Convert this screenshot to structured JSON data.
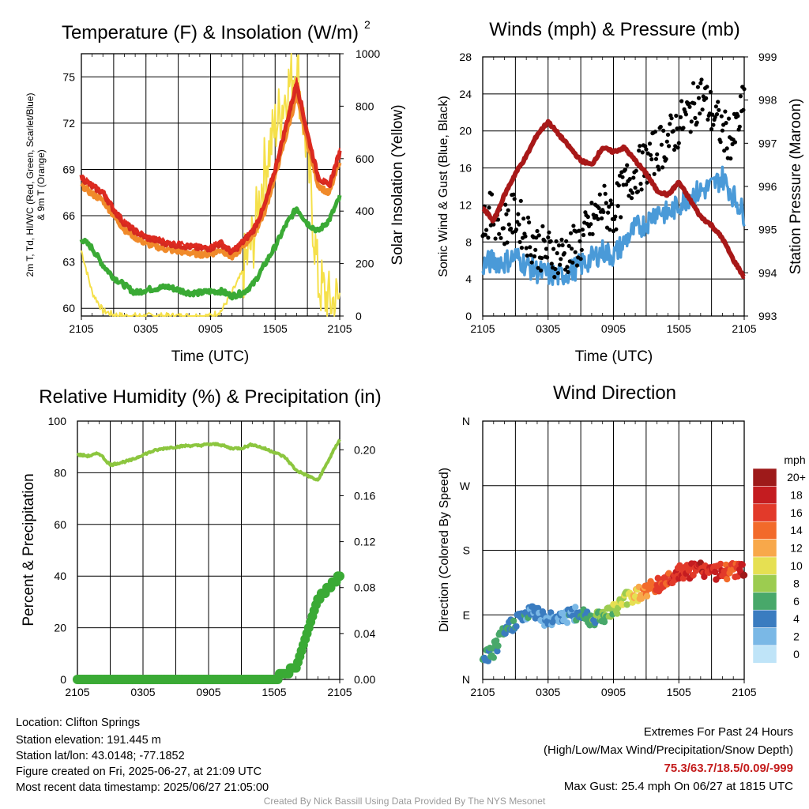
{
  "colors": {
    "temp": "#d42a20",
    "dewpoint": "#3aaa35",
    "heat_index": "#e02a20",
    "temp_9m": "#f08a2a",
    "solar": "#f5e04a",
    "wind": "#4a9ad8",
    "gust": "#000000",
    "pressure": "#a81818",
    "rh": "#8cc63f",
    "precip": "#3aaa35",
    "extremes_text": "#c41c1c"
  },
  "speed_scale": {
    "unit": "mph",
    "labels": [
      "20+",
      "18",
      "16",
      "14",
      "12",
      "10",
      "8",
      "6",
      "4",
      "2",
      "0"
    ],
    "colors": [
      "#9e1a1a",
      "#c41c20",
      "#e23a2a",
      "#f26a2a",
      "#f8a84a",
      "#e6e052",
      "#9ccc50",
      "#48a86a",
      "#3a7cc0",
      "#7ab8e6",
      "#bfe4f8"
    ]
  },
  "chart_data": [
    {
      "type": "line",
      "title": "Temperature (F) & Insolation (W/m2)",
      "xlabel": "Time (UTC)",
      "ylabel": "2m T, Td, HI/WC (Red, Green, Scarlet/Blue) & 9m T (Orange)",
      "y2label": "Solar Insolation (Yellow)",
      "x_ticks": [
        "2105",
        "0305",
        "0905",
        "1505",
        "2105"
      ],
      "y_ticks": [
        "60",
        "63",
        "66",
        "69",
        "72",
        "75"
      ],
      "y2_ticks": [
        "0",
        "200",
        "400",
        "600",
        "800",
        "1000"
      ],
      "ylim": [
        59.5,
        76.5
      ],
      "y2lim": [
        0,
        1000
      ],
      "x_hours": [
        0,
        1,
        2,
        3,
        4,
        5,
        6,
        7,
        8,
        9,
        10,
        11,
        12,
        13,
        14,
        15,
        16,
        17,
        18,
        19,
        20,
        21,
        22,
        23,
        24
      ],
      "series": [
        {
          "name": "Heat Index",
          "values": [
            68.6,
            68.0,
            67.6,
            66.5,
            65.6,
            65.1,
            64.7,
            64.5,
            64.3,
            64.2,
            64.1,
            64.0,
            64.0,
            64.3,
            63.7,
            64.4,
            65.2,
            66.7,
            69.1,
            72.0,
            74.8,
            71.5,
            68.6,
            68.0,
            70.3
          ]
        },
        {
          "name": "Temperature",
          "values": [
            68.5,
            67.9,
            67.5,
            66.4,
            65.5,
            65.0,
            64.6,
            64.4,
            64.2,
            64.1,
            64.0,
            63.9,
            63.9,
            64.2,
            63.6,
            64.3,
            65.1,
            66.6,
            69.0,
            71.8,
            74.6,
            71.3,
            68.5,
            67.9,
            70.1
          ]
        },
        {
          "name": "9m Temperature",
          "values": [
            68.0,
            67.4,
            67.0,
            66.0,
            65.1,
            64.6,
            64.2,
            64.0,
            63.8,
            63.7,
            63.6,
            63.5,
            63.5,
            63.8,
            63.3,
            64.0,
            64.8,
            66.2,
            68.6,
            71.2,
            73.8,
            70.8,
            68.0,
            67.4,
            69.6
          ]
        },
        {
          "name": "Dewpoint",
          "values": [
            64.5,
            63.9,
            62.8,
            62.0,
            61.5,
            61.0,
            61.2,
            61.3,
            61.4,
            61.2,
            61.0,
            61.0,
            61.1,
            61.1,
            60.8,
            61.0,
            61.6,
            62.8,
            64.0,
            65.4,
            66.5,
            65.5,
            65.0,
            65.7,
            67.2
          ]
        },
        {
          "name": "Solar Insolation",
          "values": [
            250,
            90,
            20,
            5,
            0,
            0,
            0,
            0,
            0,
            0,
            0,
            0,
            0,
            20,
            90,
            170,
            300,
            560,
            720,
            850,
            960,
            620,
            130,
            50,
            60
          ]
        }
      ]
    },
    {
      "type": "scatter",
      "title": "Winds (mph) & Pressure (mb)",
      "xlabel": "Time (UTC)",
      "ylabel": "Sonic Wind & Gust (Blue, Black)",
      "y2label": "Station Pressure (Maroon)",
      "x_ticks": [
        "2105",
        "0305",
        "0905",
        "1505",
        "2105"
      ],
      "y_ticks": [
        "0",
        "4",
        "8",
        "12",
        "16",
        "20",
        "24",
        "28"
      ],
      "y2_ticks": [
        "993",
        "994",
        "995",
        "996",
        "997",
        "998",
        "999"
      ],
      "ylim": [
        0,
        28
      ],
      "y2lim": [
        993,
        999
      ],
      "x_hours": [
        0,
        1,
        2,
        3,
        4,
        5,
        6,
        7,
        8,
        9,
        10,
        11,
        12,
        13,
        14,
        15,
        16,
        17,
        18,
        19,
        20,
        21,
        22,
        23,
        24
      ],
      "series": [
        {
          "name": "Sonic Wind",
          "values": [
            5.5,
            6.0,
            5.8,
            6.5,
            5.5,
            4.8,
            4.5,
            4.3,
            4.8,
            5.5,
            6.2,
            7.0,
            6.5,
            8.0,
            9.5,
            10.0,
            11.5,
            11.0,
            12.0,
            13.0,
            13.5,
            14.0,
            15.0,
            13.0,
            11.0
          ]
        },
        {
          "name": "Gust",
          "values": [
            10.5,
            11.0,
            10.0,
            11.0,
            9.0,
            7.5,
            7.0,
            6.5,
            7.0,
            8.0,
            10.0,
            12.0,
            11.0,
            14.0,
            15.5,
            16.5,
            18.0,
            19.0,
            20.5,
            22.0,
            24.0,
            22.0,
            20.0,
            19.0,
            23.0
          ]
        },
        {
          "name": "Station Pressure",
          "values": [
            995.5,
            995.2,
            995.8,
            996.3,
            996.7,
            997.2,
            997.5,
            997.2,
            996.9,
            996.6,
            996.5,
            996.9,
            996.8,
            996.9,
            996.6,
            996.3,
            995.9,
            995.8,
            996.1,
            995.7,
            995.3,
            995.1,
            994.8,
            994.3,
            993.9
          ]
        }
      ]
    },
    {
      "type": "line",
      "title": "Relative Humidity (%) & Precipitation (in)",
      "xlabel": "",
      "ylabel": "Percent & Precipitation",
      "x_ticks": [
        "2105",
        "0305",
        "0905",
        "1505",
        "2105"
      ],
      "y_ticks": [
        "0",
        "20",
        "40",
        "60",
        "80",
        "100"
      ],
      "y2_ticks": [
        "0.00",
        "0.04",
        "0.08",
        "0.12",
        "0.16",
        "0.20"
      ],
      "ylim": [
        0,
        100
      ],
      "y2lim": [
        0,
        0.225
      ],
      "x_hours": [
        0,
        1,
        2,
        3,
        4,
        5,
        6,
        7,
        8,
        9,
        10,
        11,
        12,
        13,
        14,
        15,
        16,
        17,
        18,
        19,
        20,
        21,
        22,
        23,
        24
      ],
      "series": [
        {
          "name": "Relative Humidity",
          "values": [
            87,
            86.5,
            87.5,
            83,
            84,
            85,
            87,
            88.5,
            89.5,
            90,
            90.5,
            90.5,
            91,
            91,
            89.5,
            89.5,
            91,
            89.5,
            88,
            86,
            81,
            79,
            77,
            85,
            93
          ]
        },
        {
          "name": "Precipitation",
          "values": [
            0,
            0,
            0,
            0,
            0,
            0,
            0,
            0,
            0,
            0,
            0,
            0,
            0,
            0,
            0,
            0,
            0,
            0,
            0,
            0.005,
            0.01,
            0.04,
            0.07,
            0.08,
            0.09
          ]
        }
      ]
    },
    {
      "type": "scatter",
      "title": "Wind Direction",
      "xlabel": "",
      "ylabel": "Direction (Colored By Speed)",
      "x_ticks": [
        "2105",
        "0305",
        "0905",
        "1505",
        "2105"
      ],
      "y_ticks": [
        "N",
        "E",
        "S",
        "W",
        "N"
      ],
      "ylim": [
        0,
        360
      ],
      "x_hours": [
        0,
        1,
        2,
        3,
        4,
        5,
        6,
        7,
        8,
        9,
        10,
        11,
        12,
        13,
        14,
        15,
        16,
        17,
        18,
        19,
        20,
        21,
        22,
        23,
        24
      ],
      "series": [
        {
          "name": "Direction",
          "values": [
            28,
            40,
            65,
            82,
            90,
            95,
            80,
            90,
            88,
            92,
            85,
            90,
            95,
            112,
            118,
            125,
            130,
            140,
            148,
            150,
            155,
            150,
            150,
            152,
            155
          ]
        },
        {
          "name": "Speed",
          "values": [
            5.5,
            6.0,
            6.5,
            5.5,
            5.0,
            4.5,
            4.5,
            4.3,
            4.8,
            5.5,
            6.5,
            8.0,
            9.0,
            10.5,
            12.0,
            14.0,
            16.0,
            17.0,
            18.0,
            18.5,
            19.0,
            18.0,
            17.0,
            16.0,
            20.0
          ]
        }
      ]
    }
  ],
  "info": {
    "location": "Location: Clifton Springs",
    "elevation": "Station elevation: 191.445 m",
    "latlon": "Station lat/lon: 43.0148; -77.1852",
    "created": "Figure created on Fri, 2025-06-27, at 21:09 UTC",
    "recent": "Most recent data timestamp: 2025/06/27 21:05:00"
  },
  "extremes": {
    "title": "Extremes For Past 24 Hours",
    "subtitle": "(High/Low/Max Wind/Precipitation/Snow Depth)",
    "values": "75.3/63.7/18.5/0.09/-999",
    "gust": "Max Gust: 25.4 mph On 06/27 at 1815 UTC"
  },
  "credit": "Created By Nick Bassill Using Data Provided By The NYS Mesonet"
}
